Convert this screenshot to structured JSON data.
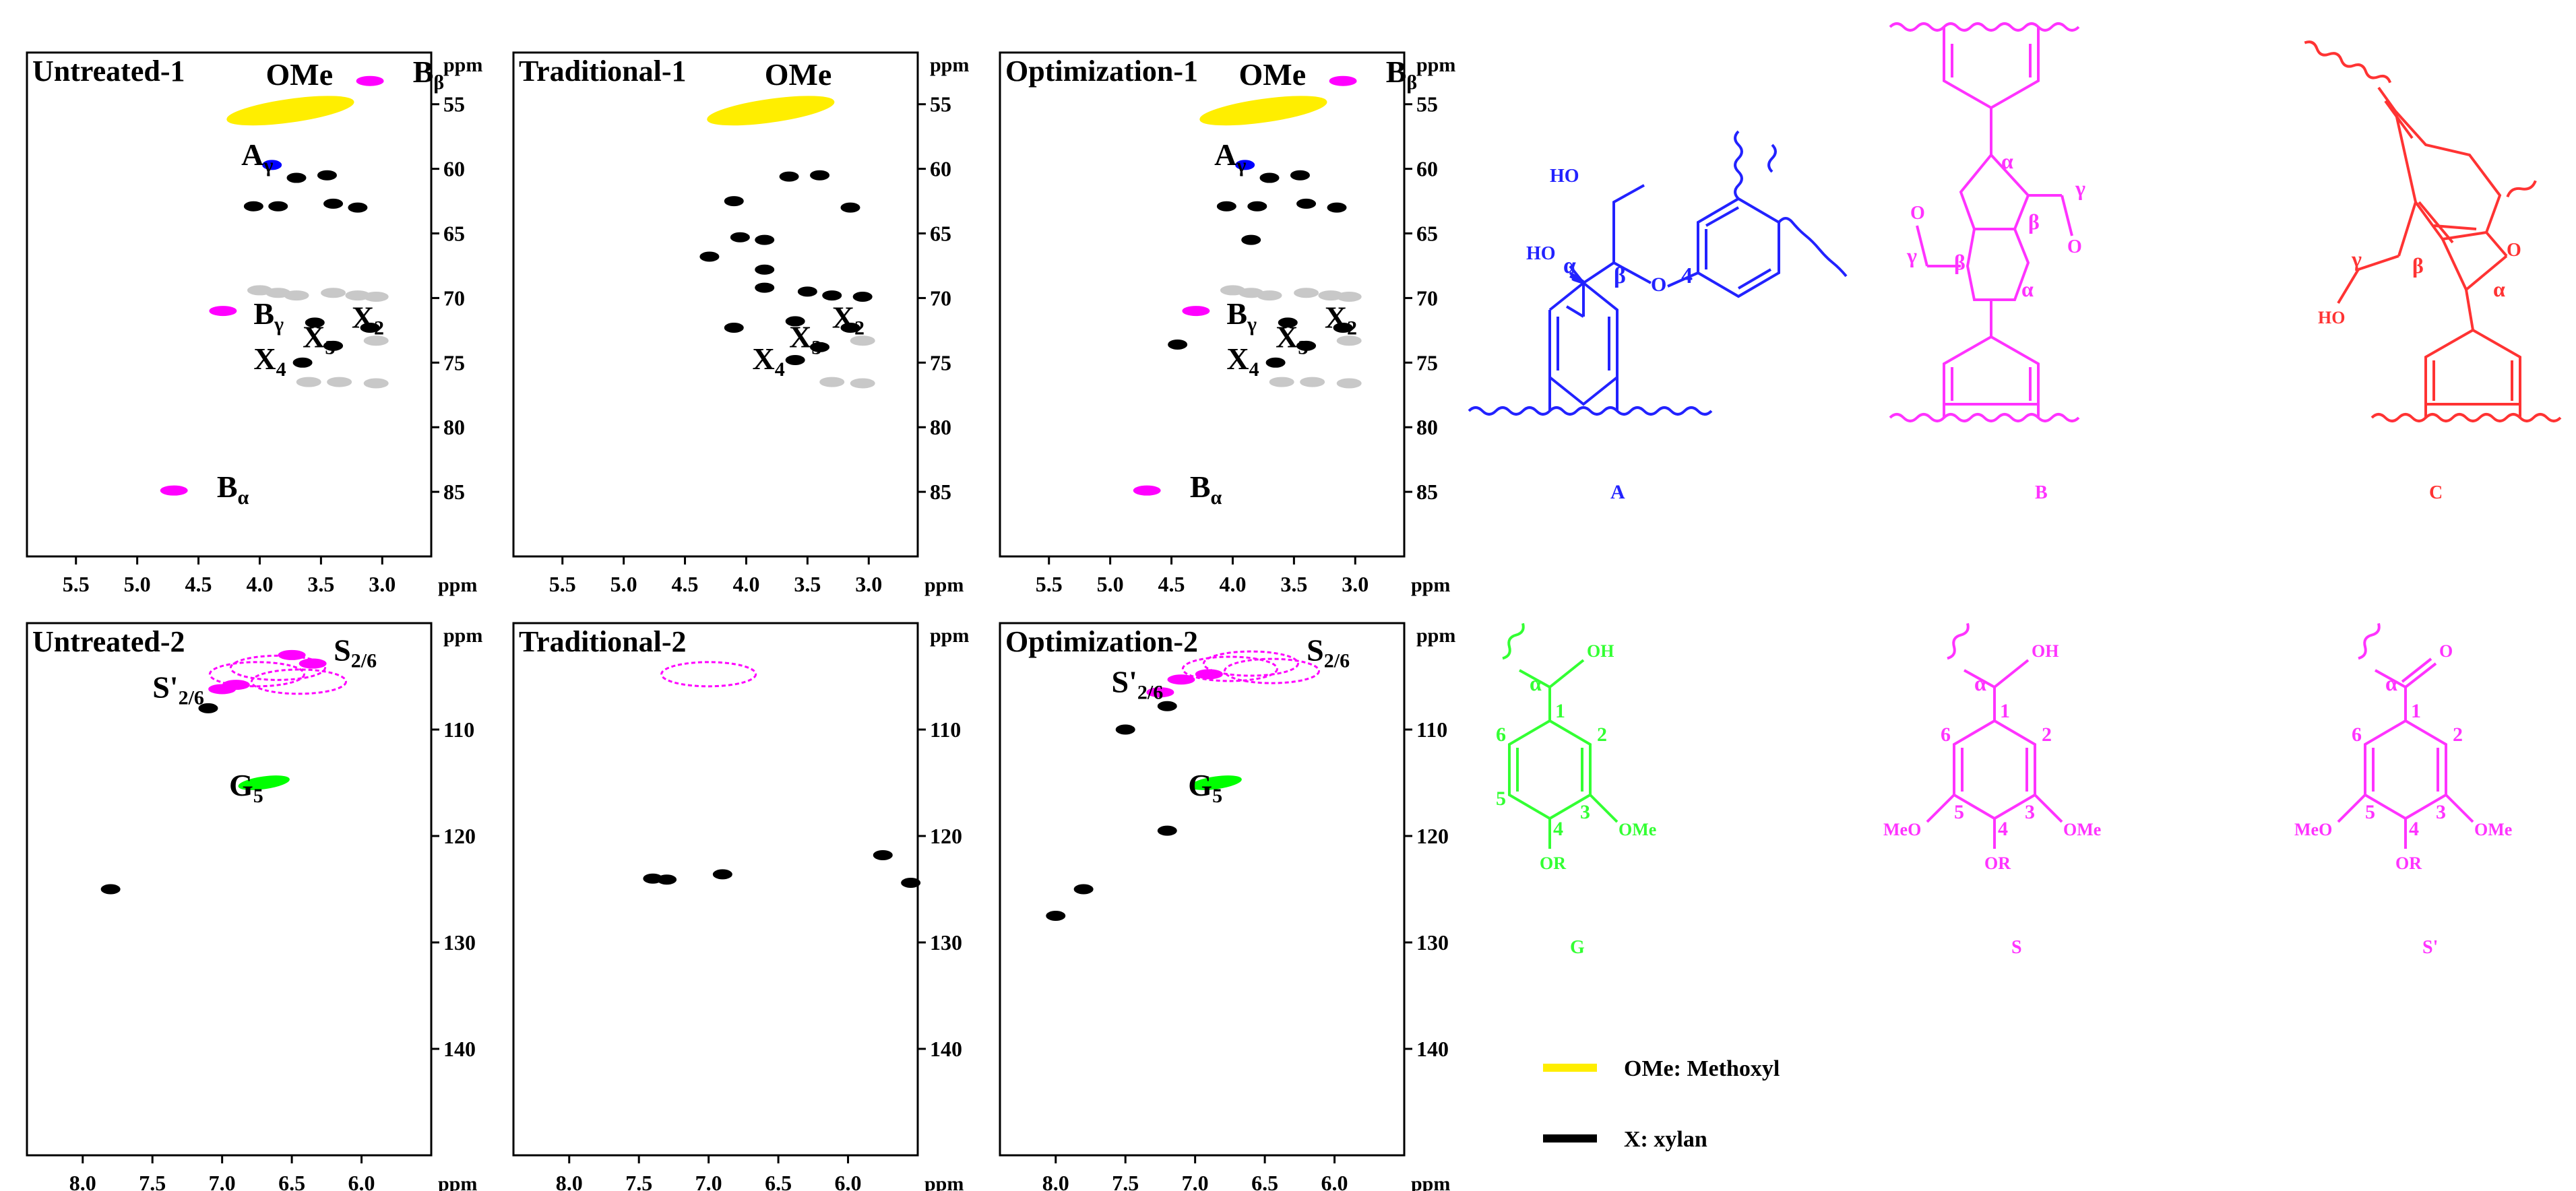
{
  "chart_data": [
    {
      "type": "scatter",
      "title": "Untreated-1",
      "ylabel": "ppm",
      "xlabel": "ppm",
      "xlim": [
        5.9,
        2.6
      ],
      "ylim": [
        90,
        51
      ],
      "x_ticks": [
        5.5,
        5.0,
        4.5,
        4.0,
        3.5,
        3.0
      ],
      "y_ticks": [
        55,
        60,
        65,
        70,
        75,
        80,
        85
      ],
      "annotations": [
        {
          "text": "OMe",
          "sub": "",
          "x": 3.95,
          "y": 53.5
        },
        {
          "text": "B",
          "sub": "β",
          "x": 2.75,
          "y": 53.3
        },
        {
          "text": "A",
          "sub": "γ",
          "x": 4.15,
          "y": 59.7
        },
        {
          "text": "B",
          "sub": "γ",
          "x": 4.05,
          "y": 72.0
        },
        {
          "text": "X",
          "sub": "2",
          "x": 3.25,
          "y": 72.3
        },
        {
          "text": "X",
          "sub": "3",
          "x": 3.65,
          "y": 73.8
        },
        {
          "text": "X",
          "sub": "4",
          "x": 4.05,
          "y": 75.5
        },
        {
          "text": "B",
          "sub": "α",
          "x": 4.35,
          "y": 85.4
        }
      ],
      "series": [
        {
          "color": "#ffee00",
          "points": [
            [
              3.75,
              55.5
            ]
          ]
        },
        {
          "color": "#ff00ff",
          "points": [
            [
              3.1,
              53.2
            ],
            [
              4.3,
              71.0
            ],
            [
              4.7,
              84.9
            ]
          ]
        },
        {
          "color": "#0000ff",
          "points": [
            [
              3.9,
              59.7
            ]
          ]
        },
        {
          "color": "#000000",
          "points": [
            [
              3.7,
              60.7
            ],
            [
              3.45,
              60.5
            ],
            [
              4.05,
              62.9
            ],
            [
              3.85,
              62.9
            ],
            [
              3.4,
              62.7
            ],
            [
              3.2,
              63.0
            ],
            [
              3.1,
              72.3
            ],
            [
              3.4,
              73.7
            ],
            [
              3.65,
              75.0
            ],
            [
              3.55,
              71.9
            ]
          ]
        },
        {
          "color": "#c8c8c8",
          "points": [
            [
              3.2,
              69.8
            ],
            [
              3.05,
              69.9
            ],
            [
              3.4,
              69.6
            ],
            [
              3.7,
              69.8
            ],
            [
              4.0,
              69.4
            ],
            [
              3.05,
              73.3
            ],
            [
              3.35,
              76.5
            ],
            [
              3.05,
              76.6
            ],
            [
              3.6,
              76.5
            ],
            [
              3.85,
              69.6
            ]
          ]
        }
      ]
    },
    {
      "type": "scatter",
      "title": "Traditional-1",
      "ylabel": "ppm",
      "xlabel": "ppm",
      "xlim": [
        5.9,
        2.6
      ],
      "ylim": [
        90,
        51
      ],
      "x_ticks": [
        5.5,
        5.0,
        4.5,
        4.0,
        3.5,
        3.0
      ],
      "y_ticks": [
        55,
        60,
        65,
        70,
        75,
        80,
        85
      ],
      "annotations": [
        {
          "text": "OMe",
          "sub": "",
          "x": 3.85,
          "y": 53.5
        },
        {
          "text": "X",
          "sub": "2",
          "x": 3.3,
          "y": 72.3
        },
        {
          "text": "X",
          "sub": "3",
          "x": 3.65,
          "y": 73.8
        },
        {
          "text": "X",
          "sub": "4",
          "x": 3.95,
          "y": 75.5
        }
      ],
      "series": [
        {
          "color": "#ffee00",
          "points": [
            [
              3.8,
              55.5
            ]
          ]
        },
        {
          "color": "#000000",
          "points": [
            [
              3.4,
              60.5
            ],
            [
              3.65,
              60.6
            ],
            [
              3.15,
              63.0
            ],
            [
              4.1,
              62.5
            ],
            [
              3.85,
              65.5
            ],
            [
              4.05,
              65.3
            ],
            [
              4.3,
              66.8
            ],
            [
              3.85,
              67.8
            ],
            [
              3.85,
              69.2
            ],
            [
              3.5,
              69.5
            ],
            [
              3.3,
              69.8
            ],
            [
              3.05,
              69.9
            ],
            [
              3.6,
              71.8
            ],
            [
              3.15,
              72.3
            ],
            [
              3.4,
              73.8
            ],
            [
              3.6,
              74.8
            ],
            [
              4.1,
              72.3
            ]
          ]
        },
        {
          "color": "#c8c8c8",
          "points": [
            [
              3.3,
              76.5
            ],
            [
              3.05,
              76.6
            ],
            [
              3.05,
              73.3
            ]
          ]
        }
      ]
    },
    {
      "type": "scatter",
      "title": "Optimization-1",
      "ylabel": "ppm",
      "xlabel": "ppm",
      "xlim": [
        5.9,
        2.6
      ],
      "ylim": [
        90,
        51
      ],
      "x_ticks": [
        5.5,
        5.0,
        4.5,
        4.0,
        3.5,
        3.0
      ],
      "y_ticks": [
        55,
        60,
        65,
        70,
        75,
        80,
        85
      ],
      "annotations": [
        {
          "text": "OMe",
          "sub": "",
          "x": 3.95,
          "y": 53.5
        },
        {
          "text": "B",
          "sub": "β",
          "x": 2.75,
          "y": 53.3
        },
        {
          "text": "A",
          "sub": "γ",
          "x": 4.15,
          "y": 59.7
        },
        {
          "text": "B",
          "sub": "γ",
          "x": 4.05,
          "y": 72.0
        },
        {
          "text": "X",
          "sub": "2",
          "x": 3.25,
          "y": 72.3
        },
        {
          "text": "X",
          "sub": "3",
          "x": 3.65,
          "y": 73.8
        },
        {
          "text": "X",
          "sub": "4",
          "x": 4.05,
          "y": 75.5
        },
        {
          "text": "B",
          "sub": "α",
          "x": 4.35,
          "y": 85.4
        }
      ],
      "series": [
        {
          "color": "#ffee00",
          "points": [
            [
              3.75,
              55.5
            ]
          ]
        },
        {
          "color": "#ff00ff",
          "points": [
            [
              3.1,
              53.2
            ],
            [
              4.3,
              71.0
            ],
            [
              4.7,
              84.9
            ]
          ]
        },
        {
          "color": "#0000ff",
          "points": [
            [
              3.9,
              59.7
            ]
          ]
        },
        {
          "color": "#000000",
          "points": [
            [
              3.7,
              60.7
            ],
            [
              3.45,
              60.5
            ],
            [
              4.05,
              62.9
            ],
            [
              3.8,
              62.9
            ],
            [
              3.4,
              62.7
            ],
            [
              3.15,
              63.0
            ],
            [
              3.85,
              65.5
            ],
            [
              3.1,
              72.3
            ],
            [
              3.4,
              73.7
            ],
            [
              3.65,
              75.0
            ],
            [
              3.55,
              71.9
            ],
            [
              4.45,
              73.6
            ]
          ]
        },
        {
          "color": "#c8c8c8",
          "points": [
            [
              3.2,
              69.8
            ],
            [
              3.05,
              69.9
            ],
            [
              3.4,
              69.6
            ],
            [
              3.7,
              69.8
            ],
            [
              4.0,
              69.4
            ],
            [
              3.05,
              73.3
            ],
            [
              3.35,
              76.5
            ],
            [
              3.05,
              76.6
            ],
            [
              3.6,
              76.5
            ],
            [
              3.85,
              69.6
            ]
          ]
        }
      ]
    },
    {
      "type": "scatter",
      "title": "Untreated-2",
      "ylabel": "ppm",
      "xlabel": "ppm",
      "xlim": [
        8.4,
        5.5
      ],
      "ylim": [
        150,
        100
      ],
      "x_ticks": [
        8.0,
        7.5,
        7.0,
        6.5,
        6.0
      ],
      "y_ticks": [
        110,
        120,
        130,
        140
      ],
      "annotations": [
        {
          "text": "S",
          "sub": "2/6",
          "x": 6.2,
          "y": 103.5
        },
        {
          "text": "S'",
          "sub": "2/6",
          "x": 7.5,
          "y": 107.0
        },
        {
          "text": "G",
          "sub": "5",
          "x": 6.95,
          "y": 116.2
        }
      ],
      "series": [
        {
          "color": "#ff00ff",
          "points": [
            [
              6.6,
              104.2
            ],
            [
              6.45,
              105.5
            ],
            [
              6.75,
              104.8
            ],
            [
              6.9,
              105.8
            ],
            [
              7.0,
              106.2
            ],
            [
              6.35,
              103.8
            ],
            [
              6.5,
              103.0
            ]
          ]
        },
        {
          "color": "#00ff00",
          "points": [
            [
              6.7,
              115.0
            ]
          ]
        },
        {
          "color": "#000000",
          "points": [
            [
              7.1,
              108.0
            ],
            [
              7.8,
              125.0
            ]
          ]
        }
      ]
    },
    {
      "type": "scatter",
      "title": "Traditional-2",
      "ylabel": "ppm",
      "xlabel": "ppm",
      "xlim": [
        8.4,
        5.5
      ],
      "ylim": [
        150,
        100
      ],
      "x_ticks": [
        8.0,
        7.5,
        7.0,
        6.5,
        6.0
      ],
      "y_ticks": [
        110,
        120,
        130,
        140
      ],
      "annotations": [],
      "series": [
        {
          "color": "#ff00ff",
          "points": [
            [
              7.0,
              104.8
            ]
          ]
        },
        {
          "color": "#000000",
          "points": [
            [
              7.4,
              124.0
            ],
            [
              7.3,
              124.1
            ],
            [
              6.9,
              123.6
            ],
            [
              5.75,
              121.8
            ],
            [
              5.55,
              124.4
            ]
          ]
        }
      ]
    },
    {
      "type": "scatter",
      "title": "Optimization-2",
      "ylabel": "ppm",
      "xlabel": "ppm",
      "xlim": [
        8.4,
        5.5
      ],
      "ylim": [
        150,
        100
      ],
      "x_ticks": [
        8.0,
        7.5,
        7.0,
        6.5,
        6.0
      ],
      "y_ticks": [
        110,
        120,
        130,
        140
      ],
      "annotations": [
        {
          "text": "S",
          "sub": "2/6",
          "x": 6.2,
          "y": 103.5
        },
        {
          "text": "S'",
          "sub": "2/6",
          "x": 7.6,
          "y": 106.5
        },
        {
          "text": "G",
          "sub": "5",
          "x": 7.05,
          "y": 116.2
        }
      ],
      "series": [
        {
          "color": "#ff00ff",
          "points": [
            [
              6.6,
              103.8
            ],
            [
              6.45,
              104.5
            ],
            [
              6.75,
              104.3
            ],
            [
              6.9,
              104.8
            ],
            [
              7.1,
              105.3
            ],
            [
              7.25,
              106.5
            ]
          ]
        },
        {
          "color": "#00ff00",
          "points": [
            [
              6.85,
              115.0
            ]
          ]
        },
        {
          "color": "#000000",
          "points": [
            [
              7.5,
              110.0
            ],
            [
              7.2,
              107.8
            ],
            [
              7.8,
              125.0
            ],
            [
              8.0,
              127.5
            ],
            [
              7.2,
              119.5
            ]
          ]
        }
      ]
    }
  ],
  "structures": {
    "A": {
      "label": "A",
      "color": "#2222ff",
      "atoms": {
        "oh_top": "HO",
        "oh_left": "HO",
        "alpha": "α",
        "beta": "β",
        "oxygen": "O",
        "pos4": "4"
      }
    },
    "B": {
      "label": "B",
      "color": "#ff33ff",
      "atoms": {
        "alpha1": "α",
        "alpha2": "α",
        "beta1": "β",
        "beta2": "β",
        "gamma1": "γ",
        "gamma2": "γ",
        "o1": "O",
        "o2": "O"
      }
    },
    "C": {
      "label": "C",
      "color": "#ff3333",
      "atoms": {
        "gamma": "γ",
        "beta": "β",
        "alpha": "α",
        "o": "O",
        "ho": "HO"
      }
    },
    "G": {
      "label": "G",
      "color": "#33ff33",
      "atoms": {
        "oh": "OH",
        "alpha": "α",
        "n1": "1",
        "n2": "2",
        "n3": "3",
        "n4": "4",
        "n5": "5",
        "n6": "6",
        "ome": "OMe",
        "or": "OR"
      }
    },
    "S": {
      "label": "S",
      "color": "#ff33ff",
      "atoms": {
        "oh": "OH",
        "alpha": "α",
        "n1": "1",
        "n2": "2",
        "n3": "3",
        "n4": "4",
        "n5": "5",
        "n6": "6",
        "ome_r": "OMe",
        "ome_l": "MeO",
        "or": "OR"
      }
    },
    "Sp": {
      "label": "S'",
      "color": "#ff33ff",
      "atoms": {
        "o": "O",
        "alpha": "α",
        "n1": "1",
        "n2": "2",
        "n3": "3",
        "n4": "4",
        "n5": "5",
        "n6": "6",
        "ome_r": "OMe",
        "ome_l": "MeO",
        "or": "OR"
      }
    }
  },
  "legend": [
    {
      "label": "OMe: Methoxyl",
      "color": "#ffee00"
    },
    {
      "label": "X: xylan",
      "color": "#000000"
    }
  ]
}
